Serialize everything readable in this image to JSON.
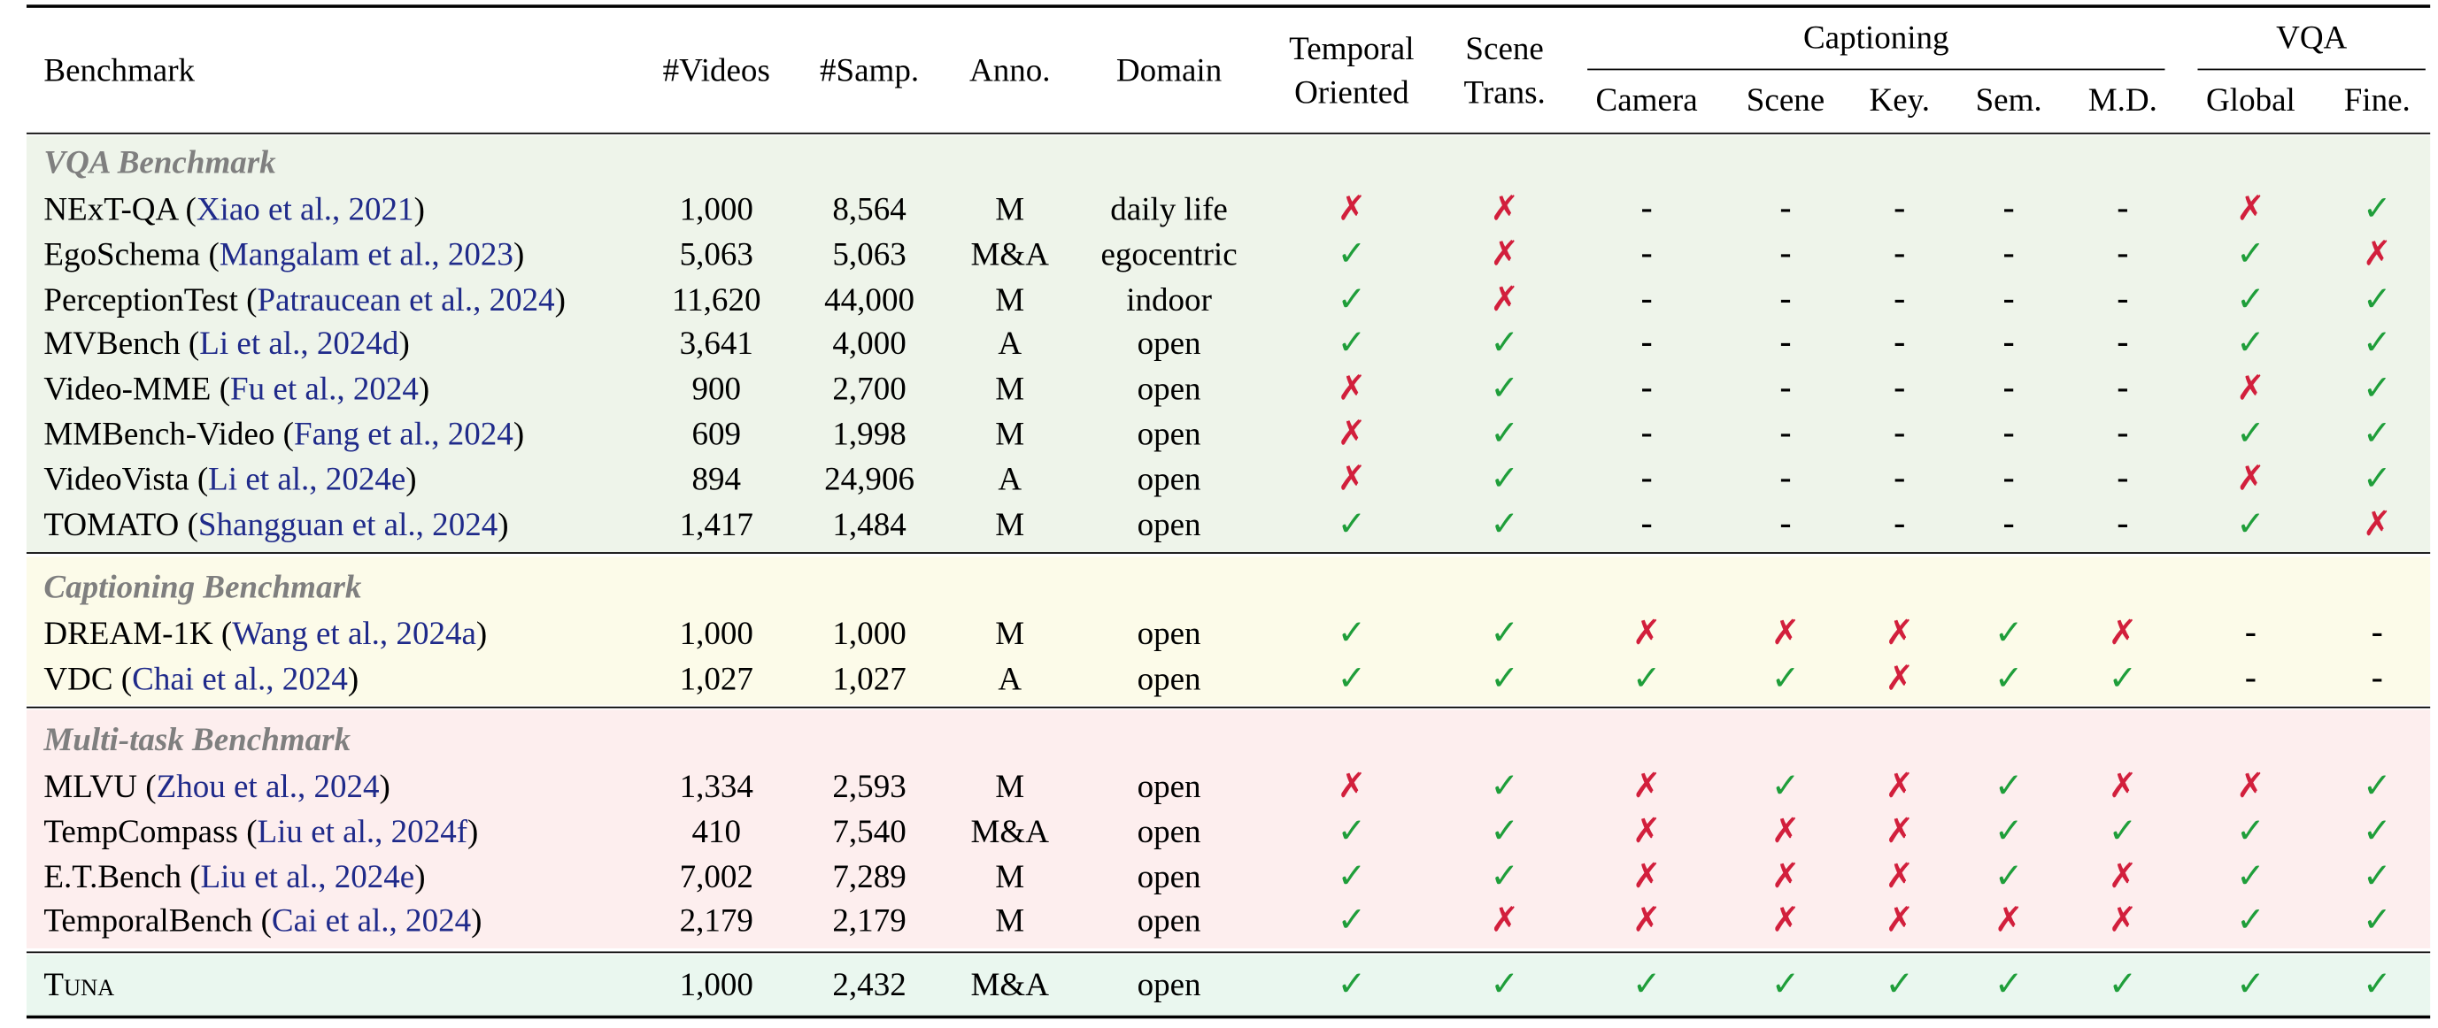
{
  "colors": {
    "vqa_bg": "#eef4ea",
    "captioning_bg": "#fcfbe9",
    "multitask_bg": "#fdeeee",
    "tuna_bg": "#eaf7ef",
    "section_title": "#7f7f7f",
    "citation": "#1f2a8a",
    "check": "#1f9e3a",
    "cross": "#d21f3c"
  },
  "symbols": {
    "check": "✓",
    "cross": "✗",
    "dash": "-"
  },
  "header": {
    "benchmark": "Benchmark",
    "videos": "#Videos",
    "samples": "#Samp.",
    "annotation": "Anno.",
    "domain": "Domain",
    "temporal_oriented_line1": "Temporal",
    "temporal_oriented_line2": "Oriented",
    "scene_trans_line1": "Scene",
    "scene_trans_line2": "Trans.",
    "captioning": "Captioning",
    "vqa": "VQA",
    "camera": "Camera",
    "scene": "Scene",
    "key": "Key.",
    "sem": "Sem.",
    "md": "M.D.",
    "global": "Global",
    "fine": "Fine."
  },
  "sections": [
    {
      "title": "VQA Benchmark",
      "rows": [
        {
          "name": "NExT-QA",
          "cite": "Xiao et al., 2021",
          "videos": "1,000",
          "samples": "8,564",
          "anno": "M",
          "domain": "daily life",
          "marks": [
            "cross",
            "cross",
            "dash",
            "dash",
            "dash",
            "dash",
            "dash",
            "cross",
            "check"
          ]
        },
        {
          "name": "EgoSchema",
          "cite": "Mangalam et al., 2023",
          "videos": "5,063",
          "samples": "5,063",
          "anno": "M&A",
          "domain": "egocentric",
          "marks": [
            "check",
            "cross",
            "dash",
            "dash",
            "dash",
            "dash",
            "dash",
            "check",
            "cross"
          ]
        },
        {
          "name": "PerceptionTest",
          "cite": "Patraucean et al., 2024",
          "videos": "11,620",
          "samples": "44,000",
          "anno": "M",
          "domain": "indoor",
          "marks": [
            "check",
            "cross",
            "dash",
            "dash",
            "dash",
            "dash",
            "dash",
            "check",
            "check"
          ]
        },
        {
          "name": "MVBench",
          "cite": "Li et al., 2024d",
          "videos": "3,641",
          "samples": "4,000",
          "anno": "A",
          "domain": "open",
          "marks": [
            "check",
            "check",
            "dash",
            "dash",
            "dash",
            "dash",
            "dash",
            "check",
            "check"
          ]
        },
        {
          "name": "Video-MME",
          "cite": "Fu et al., 2024",
          "videos": "900",
          "samples": "2,700",
          "anno": "M",
          "domain": "open",
          "marks": [
            "cross",
            "check",
            "dash",
            "dash",
            "dash",
            "dash",
            "dash",
            "cross",
            "check"
          ]
        },
        {
          "name": "MMBench-Video",
          "cite": "Fang et al., 2024",
          "videos": "609",
          "samples": "1,998",
          "anno": "M",
          "domain": "open",
          "marks": [
            "cross",
            "check",
            "dash",
            "dash",
            "dash",
            "dash",
            "dash",
            "check",
            "check"
          ]
        },
        {
          "name": "VideoVista",
          "cite": "Li et al., 2024e",
          "videos": "894",
          "samples": "24,906",
          "anno": "A",
          "domain": "open",
          "marks": [
            "cross",
            "check",
            "dash",
            "dash",
            "dash",
            "dash",
            "dash",
            "cross",
            "check"
          ]
        },
        {
          "name": "TOMATO",
          "cite": "Shangguan et al., 2024",
          "videos": "1,417",
          "samples": "1,484",
          "anno": "M",
          "domain": "open",
          "marks": [
            "check",
            "check",
            "dash",
            "dash",
            "dash",
            "dash",
            "dash",
            "check",
            "cross"
          ]
        }
      ]
    },
    {
      "title": "Captioning Benchmark",
      "rows": [
        {
          "name": "DREAM-1K",
          "cite": "Wang et al., 2024a",
          "videos": "1,000",
          "samples": "1,000",
          "anno": "M",
          "domain": "open",
          "marks": [
            "check",
            "check",
            "cross",
            "cross",
            "cross",
            "check",
            "cross",
            "dash",
            "dash"
          ]
        },
        {
          "name": "VDC",
          "cite": "Chai et al., 2024",
          "videos": "1,027",
          "samples": "1,027",
          "anno": "A",
          "domain": "open",
          "marks": [
            "check",
            "check",
            "check",
            "check",
            "cross",
            "check",
            "check",
            "dash",
            "dash"
          ]
        }
      ]
    },
    {
      "title": "Multi-task Benchmark",
      "rows": [
        {
          "name": "MLVU",
          "cite": "Zhou et al., 2024",
          "videos": "1,334",
          "samples": "2,593",
          "anno": "M",
          "domain": "open",
          "marks": [
            "cross",
            "check",
            "cross",
            "check",
            "cross",
            "check",
            "cross",
            "cross",
            "check"
          ]
        },
        {
          "name": "TempCompass",
          "cite": "Liu et al., 2024f",
          "videos": "410",
          "samples": "7,540",
          "anno": "M&A",
          "domain": "open",
          "marks": [
            "check",
            "check",
            "cross",
            "cross",
            "cross",
            "check",
            "check",
            "check",
            "check"
          ]
        },
        {
          "name": "E.T.Bench",
          "cite": "Liu et al., 2024e",
          "videos": "7,002",
          "samples": "7,289",
          "anno": "M",
          "domain": "open",
          "marks": [
            "check",
            "check",
            "cross",
            "cross",
            "cross",
            "check",
            "cross",
            "check",
            "check"
          ]
        },
        {
          "name": "TemporalBench",
          "cite": "Cai et al., 2024",
          "videos": "2,179",
          "samples": "2,179",
          "anno": "M",
          "domain": "open",
          "marks": [
            "check",
            "cross",
            "cross",
            "cross",
            "cross",
            "cross",
            "cross",
            "check",
            "check"
          ]
        }
      ]
    }
  ],
  "tuna": {
    "name": "Tuna",
    "videos": "1,000",
    "samples": "2,432",
    "anno": "M&A",
    "domain": "open",
    "marks": [
      "check",
      "check",
      "check",
      "check",
      "check",
      "check",
      "check",
      "check",
      "check"
    ]
  }
}
